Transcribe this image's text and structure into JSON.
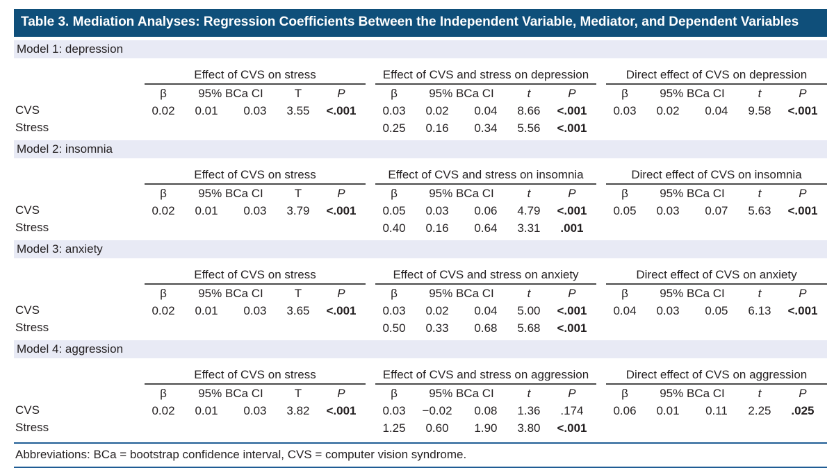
{
  "title": "Table 3. Mediation Analyses: Regression Coefficients Between the Independent Variable, Mediator, and Dependent Variables",
  "row_labels": [
    "CVS",
    "Stress"
  ],
  "headers": {
    "beta": "β",
    "ci": "95% BCa CI",
    "p": "P"
  },
  "footer": "Abbreviations: BCa = bootstrap confidence interval, CVS = computer vision syndrome.",
  "colors": {
    "title_bg": "#0f4f7a",
    "band_bg": "#e8eaf5",
    "rule": "#4a4a4a",
    "footer_line": "#1f5c94",
    "text": "#231f20"
  },
  "models": [
    {
      "label": "Model 1: depression",
      "groups": [
        {
          "title": "Effect of CVS on stress",
          "t_header": "T",
          "t_italic": false,
          "rows": [
            {
              "beta": "0.02",
              "ci_low": "0.01",
              "ci_high": "0.03",
              "t": "3.55",
              "p": "<.001",
              "p_bold": true
            },
            {
              "beta": "",
              "ci_low": "",
              "ci_high": "",
              "t": "",
              "p": "",
              "p_bold": false
            }
          ]
        },
        {
          "title": "Effect of CVS and stress on depression",
          "t_header": "t",
          "t_italic": true,
          "rows": [
            {
              "beta": "0.03",
              "ci_low": "0.02",
              "ci_high": "0.04",
              "t": "8.66",
              "p": "<.001",
              "p_bold": true
            },
            {
              "beta": "0.25",
              "ci_low": "0.16",
              "ci_high": "0.34",
              "t": "5.56",
              "p": "<.001",
              "p_bold": true
            }
          ]
        },
        {
          "title": "Direct effect of CVS on depression",
          "t_header": "t",
          "t_italic": true,
          "rows": [
            {
              "beta": "0.03",
              "ci_low": "0.02",
              "ci_high": "0.04",
              "t": "9.58",
              "p": "<.001",
              "p_bold": true
            },
            {
              "beta": "",
              "ci_low": "",
              "ci_high": "",
              "t": "",
              "p": "",
              "p_bold": false
            }
          ]
        }
      ]
    },
    {
      "label": "Model 2: insomnia",
      "groups": [
        {
          "title": "Effect of CVS on stress",
          "t_header": "T",
          "t_italic": false,
          "rows": [
            {
              "beta": "0.02",
              "ci_low": "0.01",
              "ci_high": "0.03",
              "t": "3.79",
              "p": "<.001",
              "p_bold": true
            },
            {
              "beta": "",
              "ci_low": "",
              "ci_high": "",
              "t": "",
              "p": "",
              "p_bold": false
            }
          ]
        },
        {
          "title": "Effect of CVS and stress on insomnia",
          "t_header": "t",
          "t_italic": true,
          "rows": [
            {
              "beta": "0.05",
              "ci_low": "0.03",
              "ci_high": "0.06",
              "t": "4.79",
              "p": "<.001",
              "p_bold": true
            },
            {
              "beta": "0.40",
              "ci_low": "0.16",
              "ci_high": "0.64",
              "t": "3.31",
              "p": ".001",
              "p_bold": true
            }
          ]
        },
        {
          "title": "Direct effect of CVS on insomnia",
          "t_header": "t",
          "t_italic": true,
          "rows": [
            {
              "beta": "0.05",
              "ci_low": "0.03",
              "ci_high": "0.07",
              "t": "5.63",
              "p": "<.001",
              "p_bold": true
            },
            {
              "beta": "",
              "ci_low": "",
              "ci_high": "",
              "t": "",
              "p": "",
              "p_bold": false
            }
          ]
        }
      ]
    },
    {
      "label": "Model 3: anxiety",
      "groups": [
        {
          "title": "Effect of CVS on stress",
          "t_header": "T",
          "t_italic": false,
          "rows": [
            {
              "beta": "0.02",
              "ci_low": "0.01",
              "ci_high": "0.03",
              "t": "3.65",
              "p": "<.001",
              "p_bold": true
            },
            {
              "beta": "",
              "ci_low": "",
              "ci_high": "",
              "t": "",
              "p": "",
              "p_bold": false
            }
          ]
        },
        {
          "title": "Effect of CVS and stress on anxiety",
          "t_header": "t",
          "t_italic": true,
          "rows": [
            {
              "beta": "0.03",
              "ci_low": "0.02",
              "ci_high": "0.04",
              "t": "5.00",
              "p": "<.001",
              "p_bold": true
            },
            {
              "beta": "0.50",
              "ci_low": "0.33",
              "ci_high": "0.68",
              "t": "5.68",
              "p": "<.001",
              "p_bold": true
            }
          ]
        },
        {
          "title": "Direct effect of CVS on anxiety",
          "t_header": "t",
          "t_italic": true,
          "rows": [
            {
              "beta": "0.04",
              "ci_low": "0.03",
              "ci_high": "0.05",
              "t": "6.13",
              "p": "<.001",
              "p_bold": true
            },
            {
              "beta": "",
              "ci_low": "",
              "ci_high": "",
              "t": "",
              "p": "",
              "p_bold": false
            }
          ]
        }
      ]
    },
    {
      "label": "Model 4: aggression",
      "groups": [
        {
          "title": "Effect of CVS on stress",
          "t_header": "T",
          "t_italic": false,
          "rows": [
            {
              "beta": "0.02",
              "ci_low": "0.01",
              "ci_high": "0.03",
              "t": "3.82",
              "p": "<.001",
              "p_bold": true
            },
            {
              "beta": "",
              "ci_low": "",
              "ci_high": "",
              "t": "",
              "p": "",
              "p_bold": false
            }
          ]
        },
        {
          "title": "Effect of CVS and stress on aggression",
          "t_header": "t",
          "t_italic": true,
          "rows": [
            {
              "beta": "0.03",
              "ci_low": "−0.02",
              "ci_high": "0.08",
              "t": "1.36",
              "p": ".174",
              "p_bold": false
            },
            {
              "beta": "1.25",
              "ci_low": "0.60",
              "ci_high": "1.90",
              "t": "3.80",
              "p": "<.001",
              "p_bold": true
            }
          ]
        },
        {
          "title": "Direct effect of CVS on aggression",
          "t_header": "t",
          "t_italic": true,
          "rows": [
            {
              "beta": "0.06",
              "ci_low": "0.01",
              "ci_high": "0.11",
              "t": "2.25",
              "p": ".025",
              "p_bold": true
            },
            {
              "beta": "",
              "ci_low": "",
              "ci_high": "",
              "t": "",
              "p": "",
              "p_bold": false
            }
          ]
        }
      ]
    }
  ]
}
